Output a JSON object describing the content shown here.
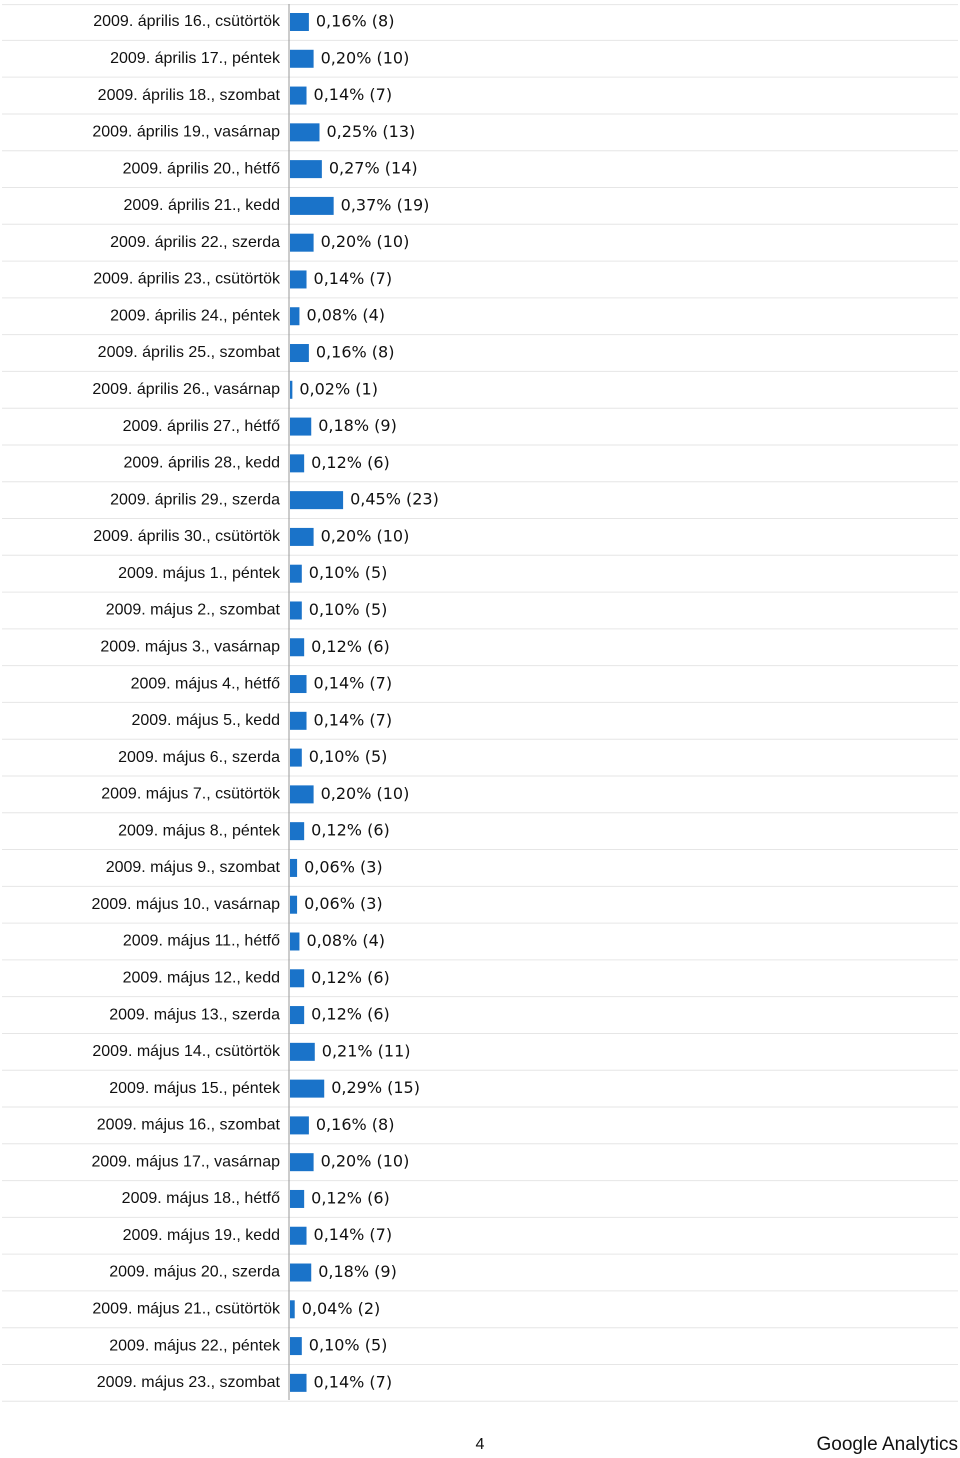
{
  "chart_data": {
    "type": "bar",
    "color": "#1a73c9",
    "categories": [
      "2009. április 16., csütörtök",
      "2009. április 17., péntek",
      "2009. április 18., szombat",
      "2009. április 19., vasárnap",
      "2009. április 20., hétfő",
      "2009. április 21., kedd",
      "2009. április 22., szerda",
      "2009. április 23., csütörtök",
      "2009. április 24., péntek",
      "2009. április 25., szombat",
      "2009. április 26., vasárnap",
      "2009. április 27., hétfő",
      "2009. április 28., kedd",
      "2009. április 29., szerda",
      "2009. április 30., csütörtök",
      "2009. május 1., péntek",
      "2009. május 2., szombat",
      "2009. május 3., vasárnap",
      "2009. május 4., hétfő",
      "2009. május 5., kedd",
      "2009. május 6., szerda",
      "2009. május 7., csütörtök",
      "2009. május 8., péntek",
      "2009. május 9., szombat",
      "2009. május 10., vasárnap",
      "2009. május 11., hétfő",
      "2009. május 12., kedd",
      "2009. május 13., szerda",
      "2009. május 14., csütörtök",
      "2009. május 15., péntek",
      "2009. május 16., szombat",
      "2009. május 17., vasárnap",
      "2009. május 18., hétfő",
      "2009. május 19., kedd",
      "2009. május 20., szerda",
      "2009. május 21., csütörtök",
      "2009. május 22., péntek",
      "2009. május 23., szombat"
    ],
    "values": [
      0.16,
      0.2,
      0.14,
      0.25,
      0.27,
      0.37,
      0.2,
      0.14,
      0.08,
      0.16,
      0.02,
      0.18,
      0.12,
      0.45,
      0.2,
      0.1,
      0.1,
      0.12,
      0.14,
      0.14,
      0.1,
      0.2,
      0.12,
      0.06,
      0.06,
      0.08,
      0.12,
      0.12,
      0.21,
      0.29,
      0.16,
      0.2,
      0.12,
      0.14,
      0.18,
      0.04,
      0.1,
      0.14
    ],
    "value_labels": [
      "0,16% (8)",
      "0,20% (10)",
      "0,14% (7)",
      "0,25% (13)",
      "0,27% (14)",
      "0,37% (19)",
      "0,20% (10)",
      "0,14% (7)",
      "0,08% (4)",
      "0,16% (8)",
      "0,02% (1)",
      "0,18% (9)",
      "0,12% (6)",
      "0,45% (23)",
      "0,20% (10)",
      "0,10% (5)",
      "0,10% (5)",
      "0,12% (6)",
      "0,14% (7)",
      "0,14% (7)",
      "0,10% (5)",
      "0,20% (10)",
      "0,12% (6)",
      "0,06% (3)",
      "0,06% (3)",
      "0,08% (4)",
      "0,12% (6)",
      "0,12% (6)",
      "0,21% (11)",
      "0,29% (15)",
      "0,16% (8)",
      "0,20% (10)",
      "0,12% (6)",
      "0,14% (7)",
      "0,18% (9)",
      "0,04% (2)",
      "0,10% (5)",
      "0,14% (7)"
    ]
  },
  "footer": {
    "page": 4,
    "brand": "Google Analytics"
  }
}
